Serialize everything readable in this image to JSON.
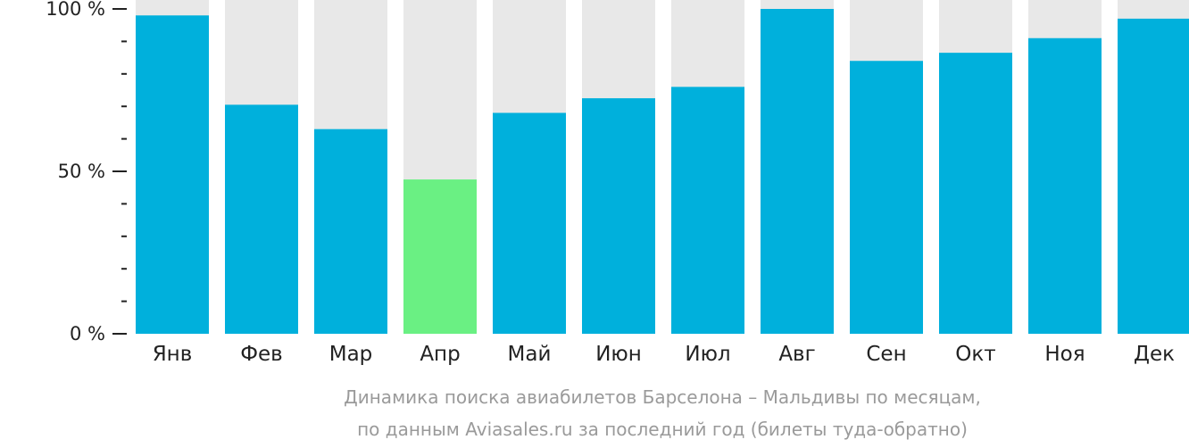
{
  "chart_data": {
    "type": "bar",
    "categories": [
      "Янв",
      "Фев",
      "Мар",
      "Апр",
      "Май",
      "Июн",
      "Июл",
      "Авг",
      "Сен",
      "Окт",
      "Ноя",
      "Дек"
    ],
    "values": [
      98,
      70.5,
      63,
      47.5,
      68,
      72.5,
      76,
      100,
      84,
      86.5,
      91,
      97
    ],
    "highlight_index": 3,
    "ylim": [
      0,
      100
    ],
    "y_ticks": [
      {
        "value": 0,
        "label": "0 %"
      },
      {
        "value": 50,
        "label": "50 %"
      },
      {
        "value": 100,
        "label": "100 %"
      }
    ],
    "y_minor_step": 10,
    "caption": [
      "Динамика поиска авиабилетов Барселона – Мальдивы по месяцам,",
      "по данным Aviasales.ru за последний год (билеты туда-обратно)"
    ],
    "colors": {
      "bar": "#00b0dc",
      "highlight": "#6af083",
      "background_bar": "#e8e8e8",
      "axis": "#222222"
    }
  }
}
